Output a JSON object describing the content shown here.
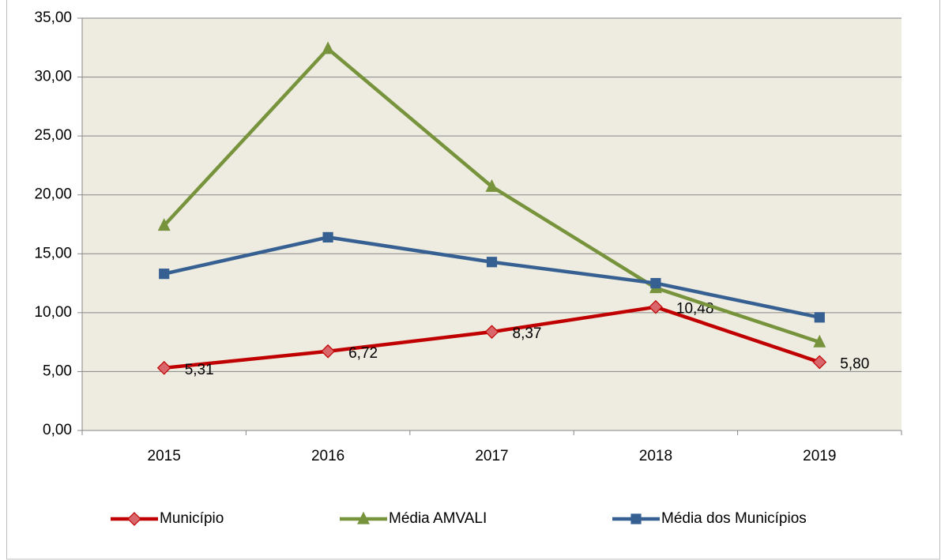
{
  "chart_data": {
    "type": "line",
    "categories": [
      "2015",
      "2016",
      "2017",
      "2018",
      "2019"
    ],
    "series": [
      {
        "name": "Município",
        "color": "#c00000",
        "marker_color": "#d9666b",
        "marker": "diamond",
        "values": [
          5.31,
          6.72,
          8.37,
          10.48,
          5.8
        ],
        "value_labels": [
          "5,31",
          "6,72",
          "8,37",
          "10,48",
          "5,80"
        ]
      },
      {
        "name": "Média AMVALI",
        "color": "#77933c",
        "marker_color": "#77933c",
        "marker": "triangle",
        "values": [
          17.4,
          32.4,
          20.7,
          12.1,
          7.5
        ]
      },
      {
        "name": "Média dos Municípios",
        "color": "#376092",
        "marker_color": "#376092",
        "marker": "square",
        "values": [
          13.3,
          16.4,
          14.3,
          12.5,
          9.6
        ]
      }
    ],
    "ylim": [
      0,
      35
    ],
    "yticks": [
      {
        "value": 0,
        "label": "0,00"
      },
      {
        "value": 5,
        "label": "5,00"
      },
      {
        "value": 10,
        "label": "10,00"
      },
      {
        "value": 15,
        "label": "15,00"
      },
      {
        "value": 20,
        "label": "20,00"
      },
      {
        "value": 25,
        "label": "25,00"
      },
      {
        "value": 30,
        "label": "30,00"
      },
      {
        "value": 35,
        "label": "35,00"
      }
    ],
    "grid": true,
    "legend": "bottom",
    "background": "#eeece1"
  }
}
